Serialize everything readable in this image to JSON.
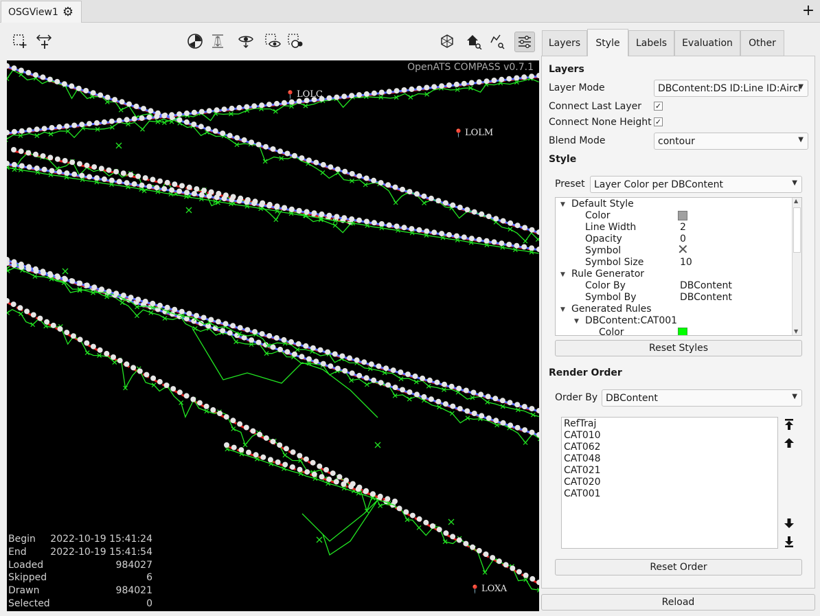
{
  "tab": {
    "title": "OSGView1"
  },
  "map": {
    "watermark": "OpenATS COMPASS v0.7.1",
    "places": [
      "LOLC",
      "LOLM",
      "LOXA"
    ]
  },
  "stats": [
    {
      "label": "Begin",
      "value": "2022-10-19 15:41:24"
    },
    {
      "label": "End",
      "value": "2022-10-19 15:41:54"
    },
    {
      "label": "Loaded",
      "value": "984027"
    },
    {
      "label": "Skipped",
      "value": "6"
    },
    {
      "label": "Drawn",
      "value": "984021"
    },
    {
      "label": "Selected",
      "value": "0"
    }
  ],
  "panel": {
    "tabs": [
      "Layers",
      "Style",
      "Labels",
      "Evaluation",
      "Other"
    ],
    "layers_heading": "Layers",
    "layer_mode_label": "Layer Mode",
    "layer_mode_value": "DBContent:DS ID:Line ID:Aircr",
    "connect_last_label": "Connect Last Layer",
    "connect_none_label": "Connect None Height",
    "blend_mode_label": "Blend Mode",
    "blend_mode_value": "contour",
    "style_heading": "Style",
    "preset_label": "Preset",
    "preset_value": "Layer Color per DBContent",
    "tree": {
      "default_style": "Default Style",
      "color": "Color",
      "line_width": "Line Width",
      "line_width_value": "2",
      "opacity": "Opacity",
      "opacity_value": "0",
      "symbol": "Symbol",
      "symbol_size": "Symbol Size",
      "symbol_size_value": "10",
      "rule_generator": "Rule Generator",
      "color_by": "Color By",
      "color_by_value": "DBContent",
      "symbol_by": "Symbol By",
      "symbol_by_value": "DBContent",
      "generated_rules": "Generated Rules",
      "cat001": "DBContent:CAT001",
      "cat001_color": "Color"
    },
    "reset_styles": "Reset Styles",
    "render_order_heading": "Render Order",
    "order_by_label": "Order By",
    "order_by_value": "DBContent",
    "order_items": [
      "RefTraj",
      "CAT010",
      "CAT062",
      "CAT048",
      "CAT021",
      "CAT020",
      "CAT001"
    ],
    "reset_order": "Reset Order"
  },
  "reload": "Reload",
  "colors": {
    "default_style_color": "#a0a0a0",
    "cat001_color": "#00ff00",
    "track_green": "#22e622",
    "track_red": "#e02020",
    "track_blue": "#5a6cff",
    "track_white": "#e6e6e6"
  }
}
